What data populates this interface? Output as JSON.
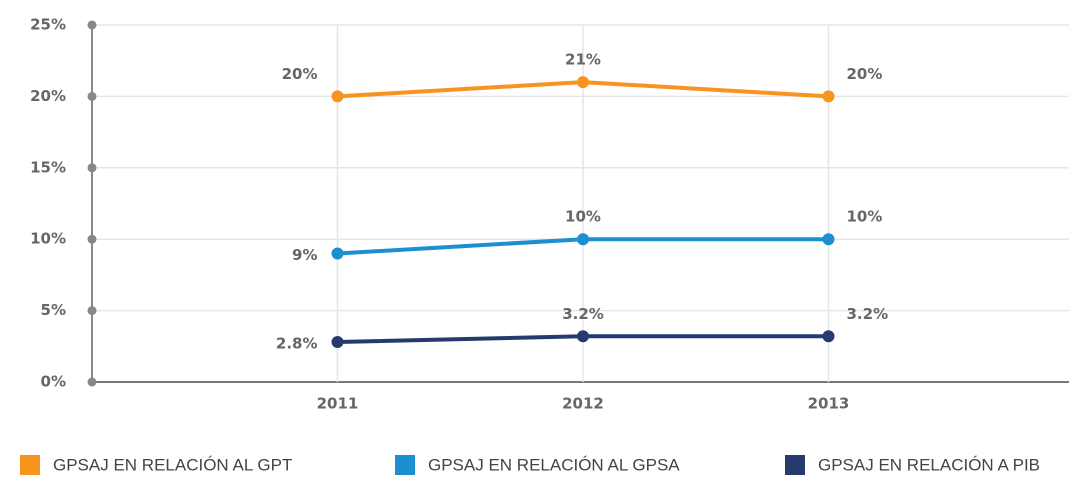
{
  "chart_data": {
    "type": "line",
    "categories": [
      "2011",
      "2012",
      "2013"
    ],
    "series": [
      {
        "name": "GPSAJ EN RELACIÓN AL GPT",
        "color": "#f7941d",
        "values": [
          20,
          21,
          20
        ],
        "value_labels": [
          "20%",
          "21%",
          "20%"
        ]
      },
      {
        "name": "GPSAJ EN RELACIÓN AL GPSA",
        "color": "#1b8fd0",
        "values": [
          9,
          10,
          10
        ],
        "value_labels": [
          "9%",
          "10%",
          "10%"
        ]
      },
      {
        "name": "GPSAJ EN RELACIÓN A PIB",
        "color": "#263a6e",
        "values": [
          2.8,
          3.2,
          3.2
        ],
        "value_labels": [
          "2.8%",
          "3.2%",
          "3.2%"
        ]
      }
    ],
    "ylim": [
      0,
      25
    ],
    "yticks": [
      {
        "value": 0,
        "label": "0%"
      },
      {
        "value": 5,
        "label": "5%"
      },
      {
        "value": 10,
        "label": "10%"
      },
      {
        "value": 15,
        "label": "15%"
      },
      {
        "value": 20,
        "label": "20%"
      },
      {
        "value": 25,
        "label": "25%"
      }
    ],
    "grid": true,
    "legend": "bottom"
  }
}
